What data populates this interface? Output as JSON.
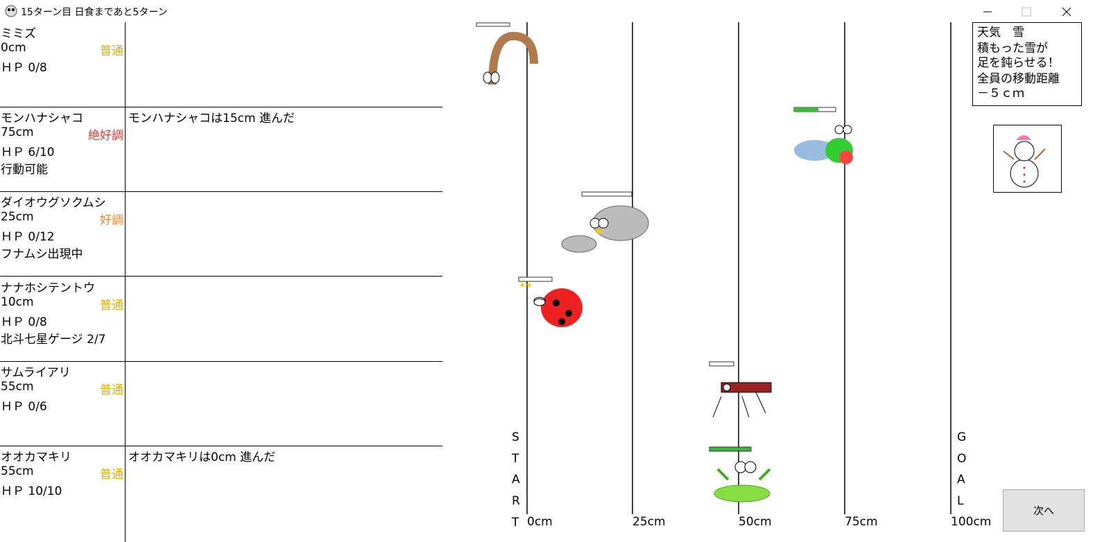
{
  "window": {
    "title": "15ターン目 日食まであと5ターン"
  },
  "racers": [
    {
      "name": "ミミズ",
      "distance": "0cm",
      "condition": "普通",
      "condition_color": "#e0b000",
      "hp": "ＨＰ 0/8"
    },
    {
      "name": "モンハナシャコ",
      "distance": "75cm",
      "condition": "絶好調",
      "condition_color": "#e83a3a",
      "hp": "ＨＰ 6/10",
      "status": "行動可能",
      "log": "モンハナシャコは15cm 進んだ"
    },
    {
      "name": "ダイオウグソクムシ",
      "distance": "25cm",
      "condition": "好調",
      "condition_color": "#f0883a",
      "hp": "ＨＰ 0/12",
      "status": "フナムシ出現中"
    },
    {
      "name": "ナナホシテントウ",
      "distance": "10cm",
      "condition": "普通",
      "condition_color": "#e0b000",
      "hp": "ＨＰ 0/8",
      "status": "北斗七星ゲージ 2/7"
    },
    {
      "name": "サムライアリ",
      "distance": "55cm",
      "condition": "普通",
      "condition_color": "#e0b000",
      "hp": "ＨＰ 0/6"
    },
    {
      "name": "オオカマキリ",
      "distance": "55cm",
      "condition": "普通",
      "condition_color": "#e0b000",
      "hp": "ＨＰ 10/10",
      "log": "オオカマキリは0cm 進んだ"
    }
  ],
  "track": {
    "start": [
      "S",
      "T",
      "A",
      "R",
      "T"
    ],
    "goal": [
      "G",
      "O",
      "A",
      "L"
    ],
    "ticks": [
      "0cm",
      "25cm",
      "50cm",
      "75cm",
      "100cm"
    ]
  },
  "weather": {
    "lines": [
      "天気　雪",
      "積もった雪が",
      "足を鈍らせる！",
      "全員の移動距離",
      "－５ｃｍ"
    ]
  },
  "button": {
    "label": "次へ"
  }
}
